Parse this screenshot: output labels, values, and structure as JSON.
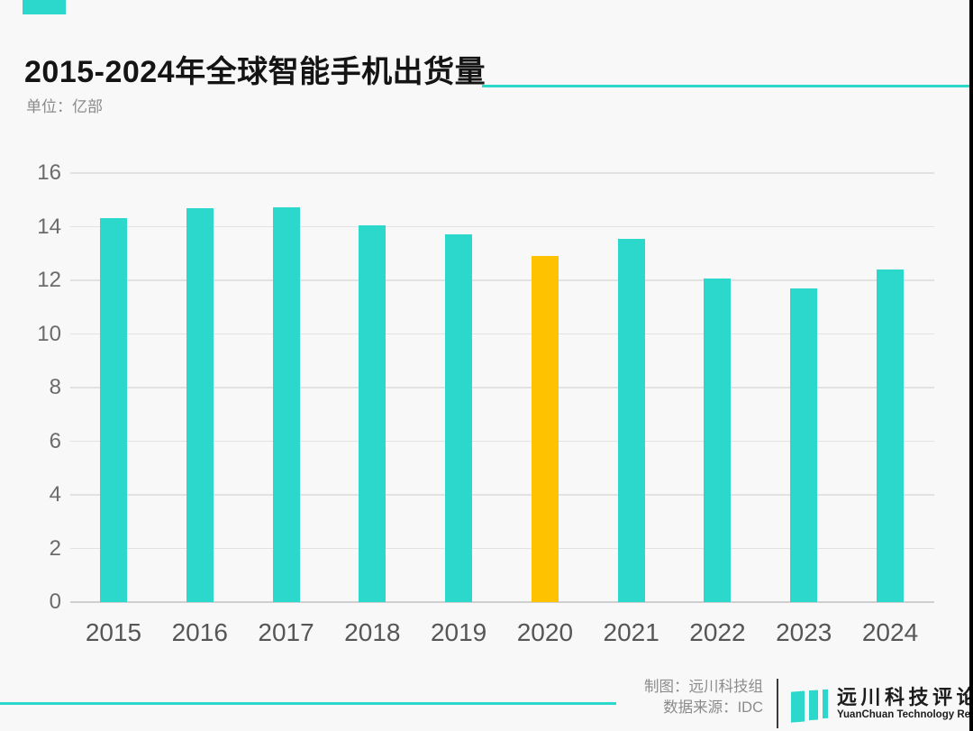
{
  "page": {
    "background": "#f8f8f8",
    "right_border_color": "#000000"
  },
  "header": {
    "accent_color": "#2bd8cb",
    "title": "2015-2024年全球智能手机出货量",
    "subtitle": "单位：亿部"
  },
  "chart_data": {
    "type": "bar",
    "title": "2015-2024年全球智能手机出货量",
    "ylabel": "单位：亿部",
    "xlabel": "",
    "categories": [
      "2015",
      "2016",
      "2017",
      "2018",
      "2019",
      "2020",
      "2021",
      "2022",
      "2023",
      "2024"
    ],
    "values": [
      14.33,
      14.7,
      14.72,
      14.05,
      13.71,
      12.9,
      13.55,
      12.08,
      11.7,
      12.4
    ],
    "bar_color": "#2bd8cb",
    "highlight_index": 5,
    "highlight_color": "#ffc200",
    "ylim": [
      0,
      16
    ],
    "ytick_step": 2,
    "grid": true,
    "legend_position": "none"
  },
  "footer": {
    "credit_line1": "制图：远川科技组",
    "credit_line2": "数据来源：IDC",
    "logo": {
      "icon": "three-teal-bars-icon",
      "name_cn": "远川科技评论",
      "name_en": "YuanChuan Technology Review"
    }
  }
}
